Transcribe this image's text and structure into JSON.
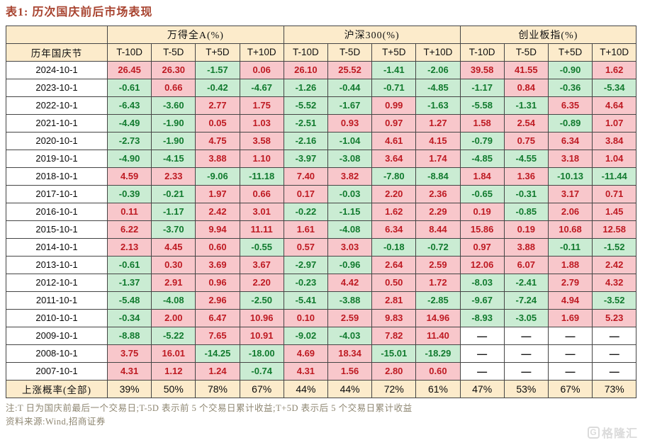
{
  "title": "表1: 历次国庆前后市场表现",
  "colors": {
    "title": "#A8432F",
    "header_bg": "#FCEBCB",
    "positive_bg": "#F8C7CB",
    "negative_bg": "#CAECD3",
    "positive_text": "#BE1A22",
    "negative_text": "#117A2E",
    "border": "#454545",
    "note_text": "#8E8671",
    "watermark": "#DBDBDB"
  },
  "table": {
    "row_header": "历年国庆节",
    "groups": [
      "万得全A(%)",
      "沪深300(%)",
      "创业板指(%)"
    ],
    "subcolumns": [
      "T-10D",
      "T-5D",
      "T+5D",
      "T+10D"
    ],
    "rows": [
      {
        "date": "2024-10-1",
        "values": [
          "26.45",
          "26.30",
          "-1.57",
          "0.06",
          "26.10",
          "25.52",
          "-1.41",
          "-2.06",
          "39.58",
          "41.55",
          "-0.90",
          "1.62"
        ]
      },
      {
        "date": "2023-10-1",
        "values": [
          "-0.61",
          "0.66",
          "-0.42",
          "-4.67",
          "-1.26",
          "-0.44",
          "-0.71",
          "-4.85",
          "-1.17",
          "0.84",
          "-0.36",
          "-5.34"
        ]
      },
      {
        "date": "2022-10-1",
        "values": [
          "-6.43",
          "-3.60",
          "2.77",
          "1.75",
          "-5.52",
          "-1.67",
          "0.99",
          "-1.63",
          "-5.58",
          "-1.31",
          "6.35",
          "4.64"
        ]
      },
      {
        "date": "2021-10-1",
        "values": [
          "-4.49",
          "-1.90",
          "0.05",
          "1.03",
          "-2.51",
          "0.93",
          "0.97",
          "1.27",
          "1.58",
          "2.54",
          "-0.89",
          "1.07"
        ]
      },
      {
        "date": "2020-10-1",
        "values": [
          "-2.73",
          "-1.90",
          "4.75",
          "3.58",
          "-2.16",
          "-1.04",
          "4.61",
          "4.15",
          "-0.79",
          "0.75",
          "6.34",
          "3.84"
        ]
      },
      {
        "date": "2019-10-1",
        "values": [
          "-4.90",
          "-4.15",
          "3.88",
          "1.10",
          "-3.97",
          "-3.08",
          "3.64",
          "1.74",
          "-4.85",
          "-4.55",
          "3.18",
          "1.04"
        ]
      },
      {
        "date": "2018-10-1",
        "values": [
          "4.59",
          "2.33",
          "-9.06",
          "-11.18",
          "7.40",
          "3.82",
          "-7.80",
          "-8.84",
          "1.84",
          "1.36",
          "-10.13",
          "-11.44"
        ]
      },
      {
        "date": "2017-10-1",
        "values": [
          "-0.39",
          "-0.21",
          "1.97",
          "0.66",
          "0.17",
          "-0.03",
          "2.20",
          "2.36",
          "-0.65",
          "-0.31",
          "3.17",
          "0.71"
        ]
      },
      {
        "date": "2016-10-1",
        "values": [
          "0.11",
          "-1.17",
          "2.42",
          "3.01",
          "-0.22",
          "-1.15",
          "1.62",
          "2.29",
          "0.19",
          "-0.85",
          "2.06",
          "1.45"
        ]
      },
      {
        "date": "2015-10-1",
        "values": [
          "6.22",
          "-3.70",
          "9.94",
          "11.11",
          "1.61",
          "-4.08",
          "6.34",
          "8.44",
          "15.86",
          "0.19",
          "10.68",
          "12.58"
        ]
      },
      {
        "date": "2014-10-1",
        "values": [
          "2.13",
          "4.45",
          "0.60",
          "-0.55",
          "0.57",
          "3.03",
          "-0.18",
          "-0.72",
          "0.97",
          "3.88",
          "-0.11",
          "-1.52"
        ]
      },
      {
        "date": "2013-10-1",
        "values": [
          "-0.61",
          "0.30",
          "3.69",
          "3.67",
          "-2.97",
          "-0.96",
          "2.64",
          "2.59",
          "12.06",
          "6.07",
          "1.88",
          "2.42"
        ]
      },
      {
        "date": "2012-10-1",
        "values": [
          "-1.37",
          "2.91",
          "0.96",
          "2.20",
          "-0.23",
          "4.42",
          "0.50",
          "1.72",
          "-8.03",
          "-2.41",
          "2.79",
          "4.32"
        ]
      },
      {
        "date": "2011-10-1",
        "values": [
          "-5.48",
          "-4.08",
          "2.96",
          "-2.50",
          "-5.41",
          "-3.88",
          "2.81",
          "-2.85",
          "-9.67",
          "-7.24",
          "4.94",
          "-3.52"
        ]
      },
      {
        "date": "2010-10-1",
        "values": [
          "-0.34",
          "2.00",
          "6.47",
          "10.96",
          "0.10",
          "2.59",
          "9.83",
          "14.96",
          "-8.93",
          "-3.05",
          "1.69",
          "5.23"
        ]
      },
      {
        "date": "2009-10-1",
        "values": [
          "-8.88",
          "-5.22",
          "7.65",
          "10.91",
          "-9.02",
          "-4.03",
          "7.82",
          "11.40",
          "—",
          "—",
          "—",
          "—"
        ]
      },
      {
        "date": "2008-10-1",
        "values": [
          "3.75",
          "16.01",
          "-14.25",
          "-18.00",
          "4.69",
          "18.34",
          "-15.01",
          "-18.29",
          "—",
          "—",
          "—",
          "—"
        ]
      },
      {
        "date": "2007-10-1",
        "values": [
          "4.31",
          "1.12",
          "1.24",
          "-0.74",
          "4.31",
          "1.56",
          "2.80",
          "0.60",
          "—",
          "—",
          "—",
          "—"
        ]
      }
    ],
    "probability_row": {
      "label": "上涨概率(全部)",
      "values": [
        "39%",
        "50%",
        "78%",
        "67%",
        "44%",
        "44%",
        "72%",
        "61%",
        "47%",
        "53%",
        "67%",
        "73%"
      ]
    }
  },
  "notes": [
    "注:T 日为国庆前最后一个交易日;T-5D 表示前 5 个交易日累计收益;T+5D 表示后 5 个交易日累计收益",
    "资料来源:Wind,招商证券"
  ],
  "watermark": "格隆汇",
  "watermark_icon": "G"
}
